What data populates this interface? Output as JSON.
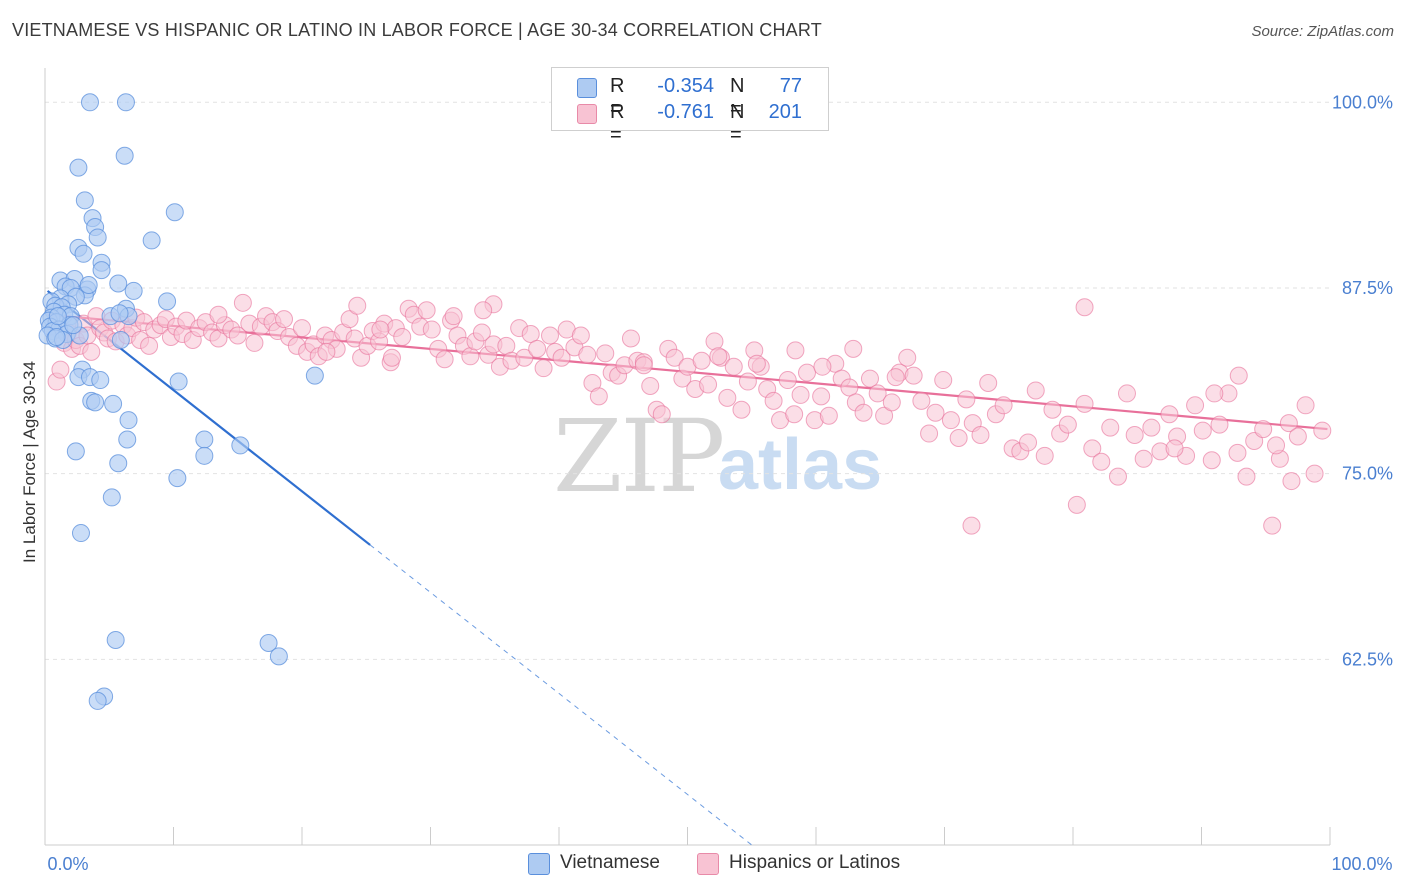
{
  "title": "VIETNAMESE VS HISPANIC OR LATINO IN LABOR FORCE | AGE 30-34 CORRELATION CHART",
  "source": "Source: ZipAtlas.com",
  "watermark": {
    "zip": "ZIP",
    "atlas": "atlas"
  },
  "legend": {
    "rows": [
      {
        "r_label": "R =",
        "r_value": "-0.354",
        "n_label": "N =",
        "n_value": "77",
        "color": "#aecbf2",
        "border": "#5a8fdc"
      },
      {
        "r_label": "R =",
        "r_value": "-0.761",
        "n_label": "N =",
        "n_value": "201",
        "color": "#f8c3d3",
        "border": "#e88aa8"
      }
    ]
  },
  "bottom_legend": {
    "series1": "Vietnamese",
    "series2": "Hispanics or Latinos"
  },
  "chart_data": {
    "type": "scatter",
    "ylabel": "In Labor Force | Age 30-34",
    "xlim": [
      0,
      100
    ],
    "ylim": [
      50,
      101.5
    ],
    "x_tick_labels": [
      {
        "value": 0,
        "label": "0.0%"
      },
      {
        "value": 100,
        "label": "100.0%"
      }
    ],
    "y_tick_labels": [
      {
        "value": 100,
        "label": "100.0%"
      },
      {
        "value": 87.5,
        "label": "87.5%"
      },
      {
        "value": 75,
        "label": "75.0%"
      },
      {
        "value": 62.5,
        "label": "62.5%"
      }
    ],
    "grid": true,
    "colors": {
      "vietnamese": "#5a8fdc",
      "vietnamese_fill": "#aecbf2",
      "hispanic": "#e8709a",
      "hispanic_fill": "#f8c3d3"
    },
    "series": [
      {
        "name": "Vietnamese",
        "trend": {
          "x0": 0.2,
          "y0": 87.3,
          "x1": 25.3,
          "y1": 70.2,
          "dash_to_x": 55,
          "dash_to_y": 50
        },
        "points": [
          [
            3.5,
            100.0
          ],
          [
            6.3,
            100.0
          ],
          [
            6.2,
            96.4
          ],
          [
            2.6,
            95.6
          ],
          [
            3.1,
            93.4
          ],
          [
            10.1,
            92.6
          ],
          [
            3.7,
            92.2
          ],
          [
            3.9,
            91.6
          ],
          [
            4.1,
            90.9
          ],
          [
            8.3,
            90.7
          ],
          [
            2.6,
            90.2
          ],
          [
            3.0,
            89.8
          ],
          [
            4.4,
            89.2
          ],
          [
            4.4,
            88.7
          ],
          [
            1.2,
            88.0
          ],
          [
            2.3,
            88.1
          ],
          [
            1.6,
            87.6
          ],
          [
            3.3,
            87.4
          ],
          [
            5.7,
            87.8
          ],
          [
            2.0,
            87.5
          ],
          [
            6.9,
            87.3
          ],
          [
            3.1,
            87.0
          ],
          [
            2.4,
            86.9
          ],
          [
            1.2,
            86.8
          ],
          [
            0.5,
            86.6
          ],
          [
            1.8,
            86.4
          ],
          [
            9.5,
            86.6
          ],
          [
            0.8,
            86.3
          ],
          [
            1.3,
            86.2
          ],
          [
            6.3,
            86.1
          ],
          [
            0.7,
            85.9
          ],
          [
            1.5,
            85.7
          ],
          [
            2.0,
            85.6
          ],
          [
            0.5,
            85.5
          ],
          [
            5.1,
            85.6
          ],
          [
            6.5,
            85.6
          ],
          [
            0.3,
            85.3
          ],
          [
            0.9,
            85.2
          ],
          [
            1.9,
            85.0
          ],
          [
            5.8,
            85.8
          ],
          [
            0.4,
            84.9
          ],
          [
            1.1,
            84.7
          ],
          [
            0.6,
            84.6
          ],
          [
            1.7,
            84.4
          ],
          [
            0.2,
            84.3
          ],
          [
            0.8,
            84.1
          ],
          [
            2.7,
            84.3
          ],
          [
            1.4,
            84.0
          ],
          [
            5.9,
            84.0
          ],
          [
            2.9,
            82.0
          ],
          [
            2.6,
            81.5
          ],
          [
            3.5,
            81.5
          ],
          [
            10.4,
            81.2
          ],
          [
            21.0,
            81.6
          ],
          [
            4.3,
            81.3
          ],
          [
            3.6,
            79.9
          ],
          [
            3.9,
            79.8
          ],
          [
            5.3,
            79.7
          ],
          [
            6.5,
            78.6
          ],
          [
            6.4,
            77.3
          ],
          [
            12.4,
            77.3
          ],
          [
            12.4,
            76.2
          ],
          [
            15.2,
            76.9
          ],
          [
            2.4,
            76.5
          ],
          [
            5.7,
            75.7
          ],
          [
            10.3,
            74.7
          ],
          [
            5.2,
            73.4
          ],
          [
            2.8,
            71.0
          ],
          [
            5.5,
            63.8
          ],
          [
            17.4,
            63.6
          ],
          [
            18.2,
            62.7
          ],
          [
            4.6,
            60.0
          ],
          [
            4.1,
            59.7
          ],
          [
            1.0,
            85.6
          ],
          [
            2.2,
            85.0
          ],
          [
            3.4,
            87.7
          ],
          [
            0.9,
            84.2
          ]
        ]
      },
      {
        "name": "Hispanics or Latinos",
        "trend": {
          "x0": 0.2,
          "y0": 85.7,
          "x1": 99.8,
          "y1": 78.0
        },
        "points": [
          [
            0.9,
            81.2
          ],
          [
            1.2,
            82.0
          ],
          [
            1.5,
            83.8
          ],
          [
            1.8,
            84.5
          ],
          [
            2.1,
            83.4
          ],
          [
            2.4,
            84.0
          ],
          [
            2.7,
            83.6
          ],
          [
            3.0,
            85.1
          ],
          [
            3.3,
            84.3
          ],
          [
            3.6,
            83.2
          ],
          [
            4.0,
            85.6
          ],
          [
            4.3,
            84.8
          ],
          [
            4.6,
            84.5
          ],
          [
            4.9,
            84.1
          ],
          [
            5.2,
            85.3
          ],
          [
            5.5,
            83.9
          ],
          [
            6.1,
            85.0
          ],
          [
            6.4,
            84.3
          ],
          [
            6.8,
            84.8
          ],
          [
            7.1,
            85.5
          ],
          [
            7.4,
            84.0
          ],
          [
            7.7,
            85.2
          ],
          [
            8.1,
            83.6
          ],
          [
            8.5,
            84.7
          ],
          [
            9.0,
            85.0
          ],
          [
            9.4,
            85.4
          ],
          [
            9.8,
            84.2
          ],
          [
            10.2,
            84.9
          ],
          [
            10.7,
            84.4
          ],
          [
            11.0,
            85.3
          ],
          [
            11.5,
            84.0
          ],
          [
            12.0,
            84.8
          ],
          [
            12.5,
            85.2
          ],
          [
            13.0,
            84.5
          ],
          [
            13.5,
            84.1
          ],
          [
            14.0,
            85.0
          ],
          [
            14.5,
            84.7
          ],
          [
            15.0,
            84.3
          ],
          [
            15.4,
            86.5
          ],
          [
            15.9,
            85.1
          ],
          [
            16.3,
            83.8
          ],
          [
            16.8,
            84.9
          ],
          [
            17.2,
            85.6
          ],
          [
            17.7,
            85.2
          ],
          [
            18.1,
            84.6
          ],
          [
            18.6,
            85.4
          ],
          [
            19.0,
            84.2
          ],
          [
            19.6,
            83.6
          ],
          [
            20.0,
            84.8
          ],
          [
            20.4,
            83.2
          ],
          [
            20.9,
            83.7
          ],
          [
            21.3,
            82.9
          ],
          [
            21.8,
            84.3
          ],
          [
            22.3,
            84.0
          ],
          [
            22.7,
            83.4
          ],
          [
            23.2,
            84.5
          ],
          [
            23.7,
            85.4
          ],
          [
            24.1,
            84.1
          ],
          [
            24.6,
            82.8
          ],
          [
            25.1,
            83.6
          ],
          [
            25.5,
            84.6
          ],
          [
            26.0,
            83.9
          ],
          [
            26.4,
            85.1
          ],
          [
            26.9,
            82.5
          ],
          [
            27.3,
            84.8
          ],
          [
            27.8,
            84.2
          ],
          [
            28.3,
            86.1
          ],
          [
            28.7,
            85.7
          ],
          [
            29.2,
            84.9
          ],
          [
            29.7,
            86.0
          ],
          [
            30.1,
            84.7
          ],
          [
            30.6,
            83.4
          ],
          [
            31.1,
            82.7
          ],
          [
            31.6,
            85.3
          ],
          [
            32.1,
            84.3
          ],
          [
            32.6,
            83.6
          ],
          [
            33.1,
            82.9
          ],
          [
            33.5,
            83.9
          ],
          [
            34.0,
            84.5
          ],
          [
            34.5,
            83.0
          ],
          [
            34.9,
            83.7
          ],
          [
            35.4,
            82.2
          ],
          [
            35.9,
            83.6
          ],
          [
            36.3,
            82.6
          ],
          [
            36.9,
            84.8
          ],
          [
            37.3,
            82.8
          ],
          [
            37.8,
            84.4
          ],
          [
            38.3,
            83.4
          ],
          [
            38.8,
            82.1
          ],
          [
            39.3,
            84.3
          ],
          [
            39.7,
            83.2
          ],
          [
            40.2,
            82.8
          ],
          [
            40.6,
            84.7
          ],
          [
            41.2,
            83.5
          ],
          [
            41.7,
            84.3
          ],
          [
            42.2,
            83.0
          ],
          [
            42.6,
            81.1
          ],
          [
            43.1,
            80.2
          ],
          [
            43.6,
            83.1
          ],
          [
            44.1,
            81.8
          ],
          [
            44.6,
            81.6
          ],
          [
            45.1,
            82.3
          ],
          [
            45.6,
            84.1
          ],
          [
            46.1,
            82.6
          ],
          [
            46.6,
            82.5
          ],
          [
            47.1,
            80.9
          ],
          [
            47.6,
            79.3
          ],
          [
            48.0,
            79.0
          ],
          [
            48.5,
            83.4
          ],
          [
            49.0,
            82.8
          ],
          [
            49.6,
            81.4
          ],
          [
            50.0,
            82.2
          ],
          [
            50.6,
            80.7
          ],
          [
            51.1,
            82.6
          ],
          [
            51.6,
            81.0
          ],
          [
            52.1,
            83.9
          ],
          [
            52.6,
            82.8
          ],
          [
            53.1,
            80.1
          ],
          [
            53.6,
            82.2
          ],
          [
            54.2,
            79.3
          ],
          [
            54.7,
            81.2
          ],
          [
            55.2,
            83.3
          ],
          [
            55.7,
            82.2
          ],
          [
            56.2,
            80.7
          ],
          [
            56.7,
            79.9
          ],
          [
            57.2,
            78.6
          ],
          [
            57.8,
            81.3
          ],
          [
            58.3,
            79.0
          ],
          [
            58.8,
            80.3
          ],
          [
            59.3,
            81.8
          ],
          [
            59.9,
            78.6
          ],
          [
            60.4,
            80.2
          ],
          [
            61.0,
            78.9
          ],
          [
            61.5,
            82.4
          ],
          [
            62.0,
            81.4
          ],
          [
            62.6,
            80.8
          ],
          [
            63.1,
            79.8
          ],
          [
            63.7,
            79.1
          ],
          [
            64.2,
            81.4
          ],
          [
            64.8,
            80.4
          ],
          [
            65.3,
            78.9
          ],
          [
            65.9,
            79.8
          ],
          [
            66.5,
            81.8
          ],
          [
            67.1,
            82.8
          ],
          [
            67.6,
            81.6
          ],
          [
            68.2,
            79.9
          ],
          [
            68.8,
            77.7
          ],
          [
            69.3,
            79.1
          ],
          [
            69.9,
            81.3
          ],
          [
            70.5,
            78.6
          ],
          [
            71.1,
            77.4
          ],
          [
            71.7,
            80.0
          ],
          [
            72.2,
            78.4
          ],
          [
            72.8,
            77.6
          ],
          [
            73.4,
            81.1
          ],
          [
            74.0,
            79.0
          ],
          [
            74.6,
            79.6
          ],
          [
            75.3,
            76.7
          ],
          [
            75.9,
            76.5
          ],
          [
            76.5,
            77.1
          ],
          [
            77.1,
            80.6
          ],
          [
            77.8,
            76.2
          ],
          [
            78.4,
            79.3
          ],
          [
            79.0,
            77.7
          ],
          [
            79.6,
            78.3
          ],
          [
            80.3,
            72.9
          ],
          [
            80.9,
            79.7
          ],
          [
            81.5,
            76.7
          ],
          [
            82.2,
            75.8
          ],
          [
            82.9,
            78.1
          ],
          [
            83.5,
            74.8
          ],
          [
            84.2,
            80.4
          ],
          [
            84.8,
            77.6
          ],
          [
            85.5,
            76.0
          ],
          [
            86.1,
            78.1
          ],
          [
            86.8,
            76.5
          ],
          [
            87.5,
            79.0
          ],
          [
            88.1,
            77.5
          ],
          [
            88.8,
            76.2
          ],
          [
            89.5,
            79.6
          ],
          [
            90.1,
            77.9
          ],
          [
            90.8,
            75.9
          ],
          [
            91.4,
            78.3
          ],
          [
            92.1,
            80.4
          ],
          [
            92.8,
            76.4
          ],
          [
            93.5,
            74.8
          ],
          [
            94.1,
            77.2
          ],
          [
            94.8,
            78.0
          ],
          [
            95.5,
            71.5
          ],
          [
            96.1,
            76.0
          ],
          [
            96.8,
            78.4
          ],
          [
            97.5,
            77.5
          ],
          [
            98.1,
            79.6
          ],
          [
            98.8,
            75.0
          ],
          [
            99.4,
            77.9
          ],
          [
            72.1,
            71.5
          ],
          [
            80.9,
            86.2
          ],
          [
            34.9,
            86.4
          ],
          [
            34.1,
            86.0
          ],
          [
            13.5,
            85.7
          ],
          [
            21.9,
            83.2
          ],
          [
            24.3,
            86.3
          ],
          [
            46.6,
            82.3
          ],
          [
            26.1,
            84.7
          ],
          [
            55.4,
            82.4
          ],
          [
            27.0,
            82.8
          ],
          [
            62.9,
            83.4
          ],
          [
            52.4,
            82.9
          ],
          [
            31.8,
            85.6
          ],
          [
            58.4,
            83.3
          ],
          [
            66.2,
            81.5
          ],
          [
            60.5,
            82.2
          ],
          [
            87.9,
            76.7
          ],
          [
            92.9,
            81.6
          ],
          [
            95.8,
            76.9
          ],
          [
            91.0,
            80.4
          ],
          [
            97.0,
            74.5
          ]
        ]
      }
    ]
  }
}
